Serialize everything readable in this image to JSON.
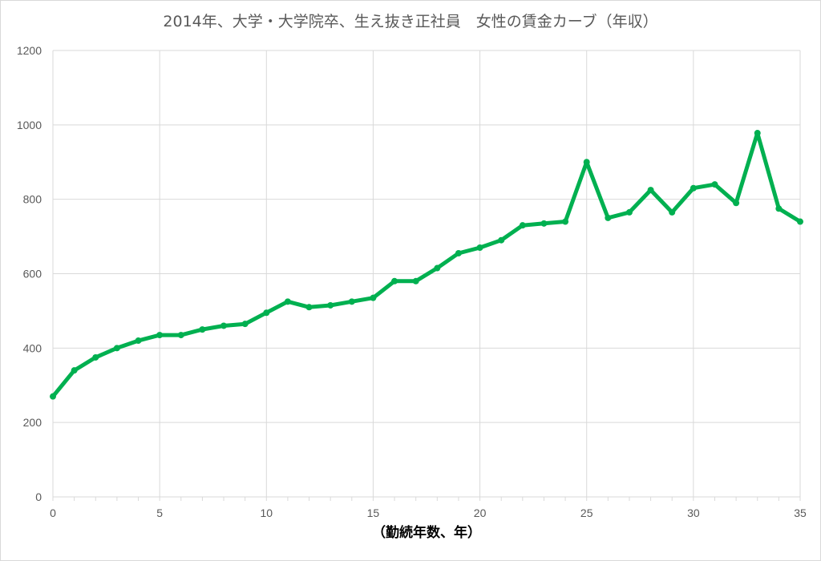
{
  "chart_data": {
    "type": "line",
    "title": "2014年、大学・大学院卒、生え抜き正社員　女性の賃金カーブ（年収）",
    "xlabel": "（勤続年数、年）",
    "ylabel": "",
    "xlim": [
      0,
      35
    ],
    "ylim": [
      0,
      1200
    ],
    "x_ticks": [
      0,
      5,
      10,
      15,
      20,
      25,
      30,
      35
    ],
    "y_ticks": [
      0,
      200,
      400,
      600,
      800,
      1000,
      1200
    ],
    "grid": true,
    "legend": "none",
    "line_color": "#00b050",
    "grid_color": "#d9d9d9",
    "series": [
      {
        "x": [
          0,
          1,
          2,
          3,
          4,
          5,
          6,
          7,
          8,
          9,
          10,
          11,
          12,
          13,
          14,
          15,
          16,
          17,
          18,
          19,
          20,
          21,
          22,
          23,
          24,
          25,
          26,
          27,
          28,
          29,
          30,
          31,
          32,
          33,
          34,
          35
        ],
        "values": [
          270,
          340,
          375,
          400,
          420,
          435,
          435,
          450,
          460,
          465,
          495,
          525,
          510,
          515,
          525,
          535,
          580,
          580,
          615,
          655,
          670,
          690,
          730,
          735,
          740,
          900,
          750,
          765,
          825,
          765,
          830,
          840,
          790,
          978,
          775,
          740
        ]
      }
    ]
  }
}
